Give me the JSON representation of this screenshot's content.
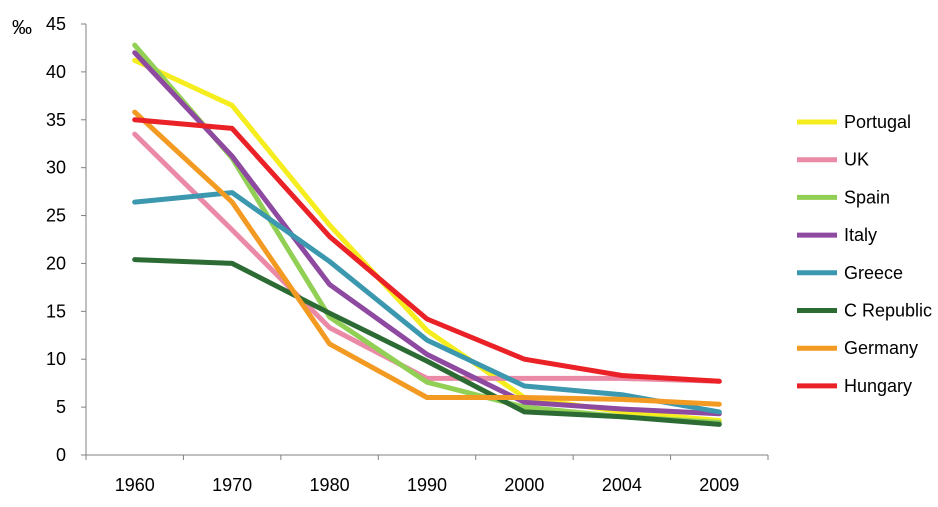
{
  "chart_data": {
    "type": "line",
    "title": "",
    "xlabel": "",
    "ylabel": "",
    "y_unit": "‰",
    "categories": [
      "1960",
      "1970",
      "1980",
      "1990",
      "2000",
      "2004",
      "2009"
    ],
    "ylim": [
      0,
      45
    ],
    "yticks": [
      0,
      5,
      10,
      15,
      20,
      25,
      30,
      35,
      40,
      45
    ],
    "grid": false,
    "legend_position": "right",
    "series": [
      {
        "name": "Portugal",
        "color": "#f5ed1d",
        "values": [
          41.2,
          36.5,
          24.0,
          13.0,
          6.0,
          4.5,
          3.6
        ]
      },
      {
        "name": "UK",
        "color": "#ea8aa6",
        "values": [
          33.5,
          23.5,
          13.3,
          8.0,
          8.0,
          8.0,
          7.7
        ]
      },
      {
        "name": "Spain",
        "color": "#92cf55",
        "values": [
          42.8,
          31.0,
          14.4,
          7.6,
          5.0,
          4.0,
          3.4
        ]
      },
      {
        "name": "Italy",
        "color": "#8e49a0",
        "values": [
          42.0,
          31.2,
          17.8,
          10.5,
          5.5,
          4.8,
          4.3
        ]
      },
      {
        "name": "Greece",
        "color": "#3c98ae",
        "values": [
          26.4,
          27.4,
          20.2,
          12.0,
          7.2,
          6.3,
          4.5
        ]
      },
      {
        "name": "C Republic",
        "color": "#2d6b35",
        "values": [
          20.4,
          20.0,
          14.8,
          9.8,
          4.5,
          4.0,
          3.2
        ]
      },
      {
        "name": "Germany",
        "color": "#f39a23",
        "values": [
          35.8,
          26.4,
          11.6,
          6.0,
          6.0,
          5.8,
          5.3
        ]
      },
      {
        "name": "Hungary",
        "color": "#ea2227",
        "values": [
          35.0,
          34.1,
          22.8,
          14.2,
          10.0,
          8.3,
          7.7
        ]
      }
    ]
  }
}
